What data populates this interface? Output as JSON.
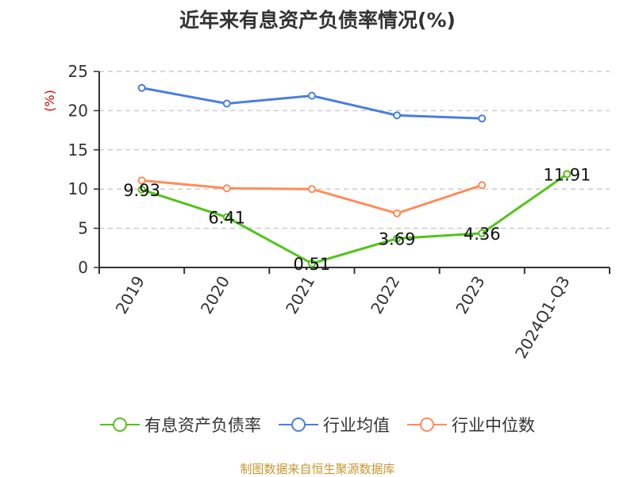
{
  "title": "近年来有息资产负债率情况(%)",
  "source": "制图数据来自恒生聚源数据库",
  "chart_data": {
    "type": "line",
    "title": "近年来有息资产负债率情况(%)",
    "xlabel": "",
    "ylabel": "(%)",
    "ylim": [
      0,
      25
    ],
    "yticks": [
      0,
      5,
      10,
      15,
      20,
      25
    ],
    "grid": true,
    "legend_position": "bottom",
    "categories": [
      "2019",
      "2020",
      "2021",
      "2022",
      "2023",
      "2024Q1-Q3"
    ],
    "series": [
      {
        "name": "有息资产负债率",
        "color": "#52c41a",
        "values": [
          9.93,
          6.41,
          0.51,
          3.69,
          4.36,
          11.91
        ],
        "labels": true
      },
      {
        "name": "行业均值",
        "color": "#4a7fdc",
        "values": [
          22.9,
          20.9,
          21.9,
          19.4,
          19.0,
          null
        ],
        "labels": false
      },
      {
        "name": "行业中位数",
        "color": "#ff8c5a",
        "values": [
          11.1,
          10.1,
          10.0,
          6.9,
          10.5,
          null
        ],
        "labels": false
      }
    ]
  }
}
